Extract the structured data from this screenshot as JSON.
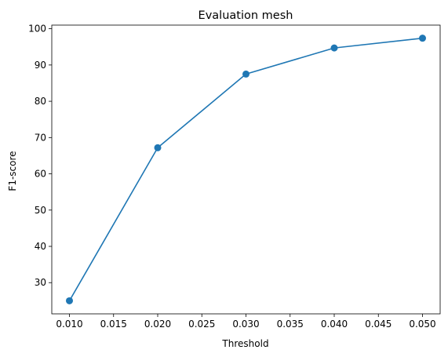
{
  "chart_data": {
    "type": "line",
    "title": "Evaluation mesh",
    "xlabel": "Threshold",
    "ylabel": "F1-score",
    "x": [
      0.01,
      0.02,
      0.03,
      0.04,
      0.05
    ],
    "series": [
      {
        "values": [
          25.0,
          67.2,
          87.5,
          94.7,
          97.4
        ],
        "color": "#1f77b4",
        "marker": "circle"
      }
    ],
    "xlim": [
      0.008,
      0.052
    ],
    "ylim": [
      21.4,
      101.0
    ],
    "xticks": [
      0.01,
      0.015,
      0.02,
      0.025,
      0.03,
      0.035,
      0.04,
      0.045,
      0.05
    ],
    "xtick_labels": [
      "0.010",
      "0.015",
      "0.020",
      "0.025",
      "0.030",
      "0.035",
      "0.040",
      "0.045",
      "0.050"
    ],
    "yticks": [
      30,
      40,
      50,
      60,
      70,
      80,
      90,
      100
    ],
    "ytick_labels": [
      "30",
      "40",
      "50",
      "60",
      "70",
      "80",
      "90",
      "100"
    ],
    "grid": false,
    "legend": "none"
  }
}
